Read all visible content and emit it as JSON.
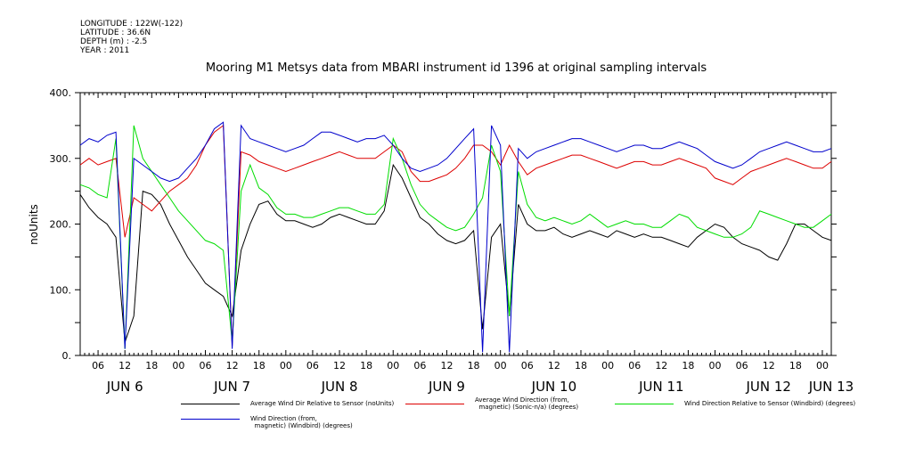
{
  "meta": {
    "longitude": "LONGITUDE : 122W(-122)",
    "latitude": "LATITUDE : 36.6N",
    "depth": "DEPTH (m) : -2.5",
    "year": "YEAR : 2011"
  },
  "chart_data": {
    "type": "line",
    "title": "Mooring M1 Metsys data from MBARI instrument id 1396 at original sampling intervals",
    "ylabel": "noUnits",
    "xlabel": "",
    "ylim": [
      0,
      400
    ],
    "xlim": [
      2,
      170
    ],
    "yticks": [
      0,
      100,
      200,
      300,
      400
    ],
    "ytick_labels": [
      "0.",
      "100.",
      "200.",
      "300.",
      "400."
    ],
    "xticks_hours": [
      6,
      12,
      18,
      24,
      30,
      36,
      42,
      48,
      54,
      60,
      66,
      72,
      78,
      84,
      90,
      96,
      102,
      108,
      114,
      120,
      126,
      132,
      138,
      144,
      150,
      156,
      162,
      168
    ],
    "xtick_labels": [
      "06",
      "12",
      "18",
      "00",
      "06",
      "12",
      "18",
      "00",
      "06",
      "12",
      "18",
      "00",
      "06",
      "12",
      "18",
      "00",
      "06",
      "12",
      "18",
      "00",
      "06",
      "12",
      "18",
      "00",
      "06",
      "12",
      "18",
      "00"
    ],
    "day_labels": [
      {
        "label": "JUN  6",
        "hour": 12
      },
      {
        "label": "JUN  7",
        "hour": 36
      },
      {
        "label": "JUN  8",
        "hour": 60
      },
      {
        "label": "JUN  9",
        "hour": 84
      },
      {
        "label": "JUN 10",
        "hour": 108
      },
      {
        "label": "JUN 11",
        "hour": 132
      },
      {
        "label": "JUN 12",
        "hour": 156
      },
      {
        "label": "JUN 13",
        "hour": 170
      }
    ],
    "x_hours": [
      2,
      4,
      6,
      8,
      10,
      12,
      14,
      16,
      18,
      20,
      22,
      24,
      26,
      28,
      30,
      32,
      34,
      36,
      38,
      40,
      42,
      44,
      46,
      48,
      50,
      52,
      54,
      56,
      58,
      60,
      62,
      64,
      66,
      68,
      70,
      72,
      74,
      76,
      78,
      80,
      82,
      84,
      86,
      88,
      90,
      92,
      94,
      96,
      98,
      100,
      102,
      104,
      106,
      108,
      110,
      112,
      114,
      116,
      118,
      120,
      122,
      124,
      126,
      128,
      130,
      132,
      134,
      136,
      138,
      140,
      142,
      144,
      146,
      148,
      150,
      152,
      154,
      156,
      158,
      160,
      162,
      164,
      166,
      168,
      170
    ],
    "series": [
      {
        "name": "Average Wind Dir Relative to Sensor (noUnits)",
        "color": "#000000",
        "values": [
          245,
          225,
          210,
          200,
          180,
          20,
          60,
          250,
          245,
          230,
          200,
          175,
          150,
          130,
          110,
          100,
          90,
          60,
          160,
          200,
          230,
          235,
          215,
          205,
          205,
          200,
          195,
          200,
          210,
          215,
          210,
          205,
          200,
          200,
          220,
          290,
          270,
          240,
          210,
          200,
          185,
          175,
          170,
          175,
          190,
          40,
          180,
          200,
          60,
          230,
          200,
          190,
          190,
          195,
          185,
          180,
          185,
          190,
          185,
          180,
          190,
          185,
          180,
          185,
          180,
          180,
          175,
          170,
          165,
          180,
          190,
          200,
          195,
          180,
          170,
          165,
          160,
          150,
          145,
          170,
          200,
          200,
          190,
          180,
          175
        ]
      },
      {
        "name": "Average Wind Direction (from, magnetic) (Sonic-n/a) (degrees)",
        "color": "#dd0000",
        "values": [
          290,
          300,
          290,
          295,
          300,
          180,
          240,
          230,
          220,
          235,
          250,
          260,
          270,
          290,
          320,
          340,
          350,
          15,
          310,
          305,
          295,
          290,
          285,
          280,
          285,
          290,
          295,
          300,
          305,
          310,
          305,
          300,
          300,
          300,
          310,
          320,
          310,
          280,
          265,
          265,
          270,
          275,
          285,
          300,
          320,
          320,
          310,
          290,
          320,
          295,
          275,
          285,
          290,
          295,
          300,
          305,
          305,
          300,
          295,
          290,
          285,
          290,
          295,
          295,
          290,
          290,
          295,
          300,
          295,
          290,
          285,
          270,
          265,
          260,
          270,
          280,
          285,
          290,
          295,
          300,
          295,
          290,
          285,
          285,
          295
        ]
      },
      {
        "name": "Wind Direction Relative to Sensor (Windbird) (degrees)",
        "color": "#00dd00",
        "values": [
          260,
          255,
          245,
          240,
          330,
          10,
          350,
          300,
          280,
          260,
          240,
          220,
          205,
          190,
          175,
          170,
          160,
          20,
          250,
          290,
          255,
          245,
          225,
          215,
          215,
          210,
          210,
          215,
          220,
          225,
          225,
          220,
          215,
          215,
          230,
          330,
          300,
          260,
          230,
          215,
          205,
          195,
          190,
          195,
          215,
          240,
          320,
          280,
          60,
          280,
          230,
          210,
          205,
          210,
          205,
          200,
          205,
          215,
          205,
          195,
          200,
          205,
          200,
          200,
          195,
          195,
          205,
          215,
          210,
          195,
          190,
          185,
          180,
          180,
          185,
          195,
          220,
          215,
          210,
          205,
          200,
          195,
          195,
          205,
          215
        ]
      },
      {
        "name": "Wind Direction (from, magnetic) (Windbird) (degrees)",
        "color": "#0000cc",
        "values": [
          320,
          330,
          325,
          335,
          340,
          10,
          300,
          290,
          280,
          270,
          265,
          270,
          285,
          300,
          320,
          345,
          355,
          10,
          350,
          330,
          325,
          320,
          315,
          310,
          315,
          320,
          330,
          340,
          340,
          335,
          330,
          325,
          330,
          330,
          335,
          320,
          300,
          285,
          280,
          285,
          290,
          300,
          315,
          330,
          345,
          5,
          350,
          320,
          5,
          315,
          300,
          310,
          315,
          320,
          325,
          330,
          330,
          325,
          320,
          315,
          310,
          315,
          320,
          320,
          315,
          315,
          320,
          325,
          320,
          315,
          305,
          295,
          290,
          285,
          290,
          300,
          310,
          315,
          320,
          325,
          320,
          315,
          310,
          310,
          315
        ]
      }
    ],
    "grid": false,
    "legend": "bottom"
  },
  "legend": [
    {
      "text": "Average Wind Dir Relative to Sensor (noUnits)",
      "color": "#000000"
    },
    {
      "text": "Average Wind Direction (from,\n  magnetic) (Sonic-n/a) (degrees)",
      "color": "#dd0000"
    },
    {
      "text": "Wind Direction Relative to Sensor (Windbird) (degrees)",
      "color": "#00dd00"
    },
    {
      "text": "Wind Direction (from,\n  magnetic) (Windbird) (degrees)",
      "color": "#0000cc"
    }
  ]
}
